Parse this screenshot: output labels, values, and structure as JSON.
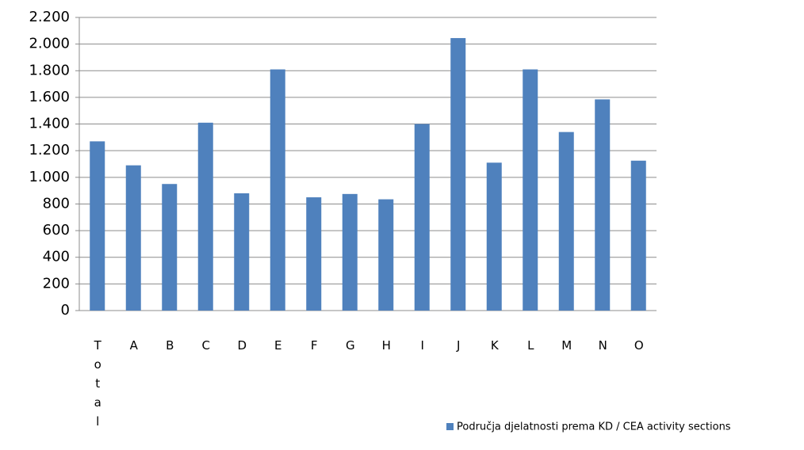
{
  "chart_data": {
    "type": "bar",
    "categories": [
      "Total",
      "A",
      "B",
      "C",
      "D",
      "E",
      "F",
      "G",
      "H",
      "I",
      "J",
      "K",
      "L",
      "M",
      "N",
      "O"
    ],
    "series": [
      {
        "name": "Područja djelatnosti prema KD / CEA activity sections",
        "color": "#4f81bd",
        "values": [
          1270,
          1090,
          950,
          1410,
          880,
          1810,
          850,
          875,
          835,
          1400,
          2045,
          1110,
          1810,
          1340,
          1585,
          1125
        ]
      }
    ],
    "ylim": [
      0,
      2200
    ],
    "yticks": [
      0,
      200,
      400,
      600,
      800,
      {
        "value": 1000,
        "label": "1.000"
      },
      {
        "value": 1200,
        "label": "1.200"
      },
      {
        "value": 1400,
        "label": "1.400"
      },
      {
        "value": 1600,
        "label": "1.600"
      },
      {
        "value": 1800,
        "label": "1.800"
      },
      {
        "value": 2000,
        "label": "2.000"
      },
      {
        "value": 2200,
        "label": "2.200"
      }
    ],
    "grid": true,
    "legend": "bottom-right"
  }
}
